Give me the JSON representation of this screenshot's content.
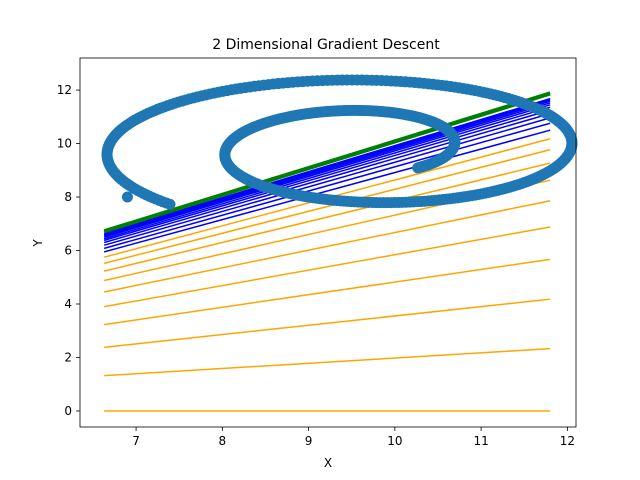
{
  "chart_data": {
    "type": "line",
    "title": "2 Dimensional Gradient Descent",
    "xlabel": "X",
    "ylabel": "Y",
    "xlim": [
      6.35,
      12.1
    ],
    "ylim": [
      -0.6,
      13.2
    ],
    "xticks": [
      7,
      8,
      9,
      10,
      11,
      12
    ],
    "yticks": [
      0,
      2,
      4,
      6,
      8,
      10,
      12
    ],
    "legend": "none",
    "grid": false,
    "line_x_range": [
      6.63,
      11.8
    ],
    "colors": {
      "early_fits": "#ffa500",
      "late_fits": "#0000ff",
      "final_fit": "#008000",
      "spiral": "#1f77b4"
    },
    "series": [
      {
        "role": "fitted-lines-early",
        "color": "#ffa500",
        "lines": [
          {
            "y_start": 0.0,
            "y_end": 0.0
          },
          {
            "y_start": 1.32,
            "y_end": 2.33
          },
          {
            "y_start": 2.38,
            "y_end": 4.18
          },
          {
            "y_start": 3.23,
            "y_end": 5.67
          },
          {
            "y_start": 3.9,
            "y_end": 6.88
          },
          {
            "y_start": 4.45,
            "y_end": 7.86
          },
          {
            "y_start": 4.88,
            "y_end": 8.63
          },
          {
            "y_start": 5.23,
            "y_end": 9.27
          },
          {
            "y_start": 5.52,
            "y_end": 9.77
          },
          {
            "y_start": 5.75,
            "y_end": 10.18
          }
        ]
      },
      {
        "role": "fitted-lines-late",
        "color": "#0000ff",
        "lines": [
          {
            "y_start": 5.95,
            "y_end": 10.5
          },
          {
            "y_start": 6.08,
            "y_end": 10.76
          },
          {
            "y_start": 6.2,
            "y_end": 10.96
          },
          {
            "y_start": 6.3,
            "y_end": 11.12
          },
          {
            "y_start": 6.38,
            "y_end": 11.25
          },
          {
            "y_start": 6.44,
            "y_end": 11.36
          },
          {
            "y_start": 6.5,
            "y_end": 11.45
          },
          {
            "y_start": 6.54,
            "y_end": 11.52
          },
          {
            "y_start": 6.58,
            "y_end": 11.58
          },
          {
            "y_start": 6.61,
            "y_end": 11.63
          },
          {
            "y_start": 6.64,
            "y_end": 11.68
          }
        ]
      },
      {
        "role": "fitted-lines-final",
        "color": "#008000",
        "lines": [
          {
            "y_start": 6.7,
            "y_end": 11.85
          },
          {
            "y_start": 6.74,
            "y_end": 11.9
          }
        ]
      },
      {
        "role": "spiral-points",
        "color": "#1f77b4",
        "marker": "circle",
        "spiral": {
          "start": [
            6.9,
            8.0
          ],
          "center": [
            9.7,
            9.8
          ],
          "radius_start_x": 3.2,
          "radius_start_y": 3.0,
          "radius_end_x": 0.8,
          "radius_end_y": 1.0,
          "angle_start_deg": 225,
          "turns": 1.75
        }
      }
    ]
  }
}
